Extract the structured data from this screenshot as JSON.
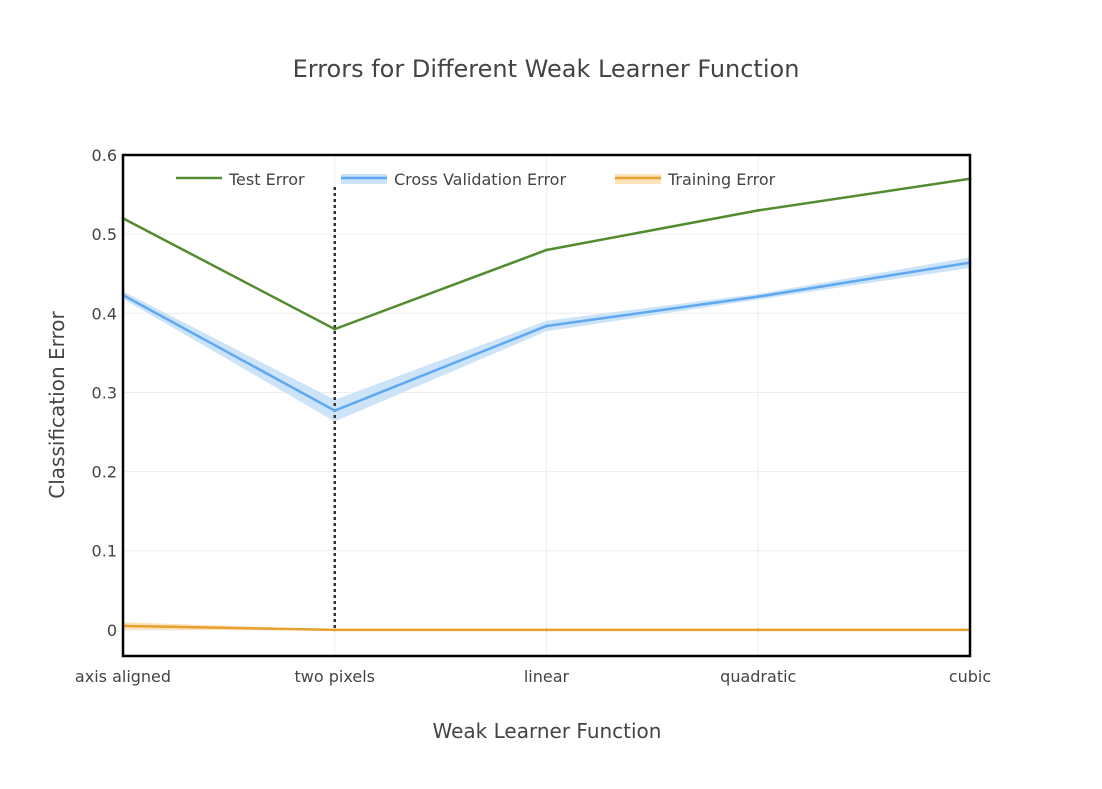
{
  "chart_data": {
    "type": "line",
    "title": "Errors for Different Weak Learner Function",
    "xlabel": "Weak Learner Function",
    "ylabel": "Classification Error",
    "categories": [
      "axis aligned",
      "two pixels",
      "linear",
      "quadratic",
      "cubic"
    ],
    "ylim": [
      -0.033,
      0.6
    ],
    "yticks": [
      0,
      0.1,
      0.2,
      0.3,
      0.4,
      0.5,
      0.6
    ],
    "ytick_labels": [
      "0",
      "0.1",
      "0.2",
      "0.3",
      "0.4",
      "0.5",
      "0.6"
    ],
    "grid": true,
    "legend_position": "top-left, horizontal",
    "vertical_marker_category": "two pixels",
    "series": [
      {
        "name": "Test Error",
        "values": [
          0.52,
          0.38,
          0.48,
          0.53,
          0.57
        ],
        "color": "#538b30"
      },
      {
        "name": "Cross Validation Error",
        "values": [
          0.423,
          0.277,
          0.384,
          0.421,
          0.464
        ],
        "band_lower": [
          0.419,
          0.264,
          0.378,
          0.418,
          0.458
        ],
        "band_upper": [
          0.427,
          0.29,
          0.39,
          0.424,
          0.47
        ],
        "color": "#5da9f2",
        "band_color": "#cde3f8"
      },
      {
        "name": "Training Error",
        "values": [
          0.005,
          0.0,
          0.0,
          0.0,
          0.0
        ],
        "band_lower": [
          0.001,
          0.0,
          0.0,
          0.0,
          0.0
        ],
        "band_upper": [
          0.009,
          0.0,
          0.0,
          0.0,
          0.0
        ],
        "color": "#e8a030",
        "band_color": "#fbe3bb"
      }
    ]
  }
}
